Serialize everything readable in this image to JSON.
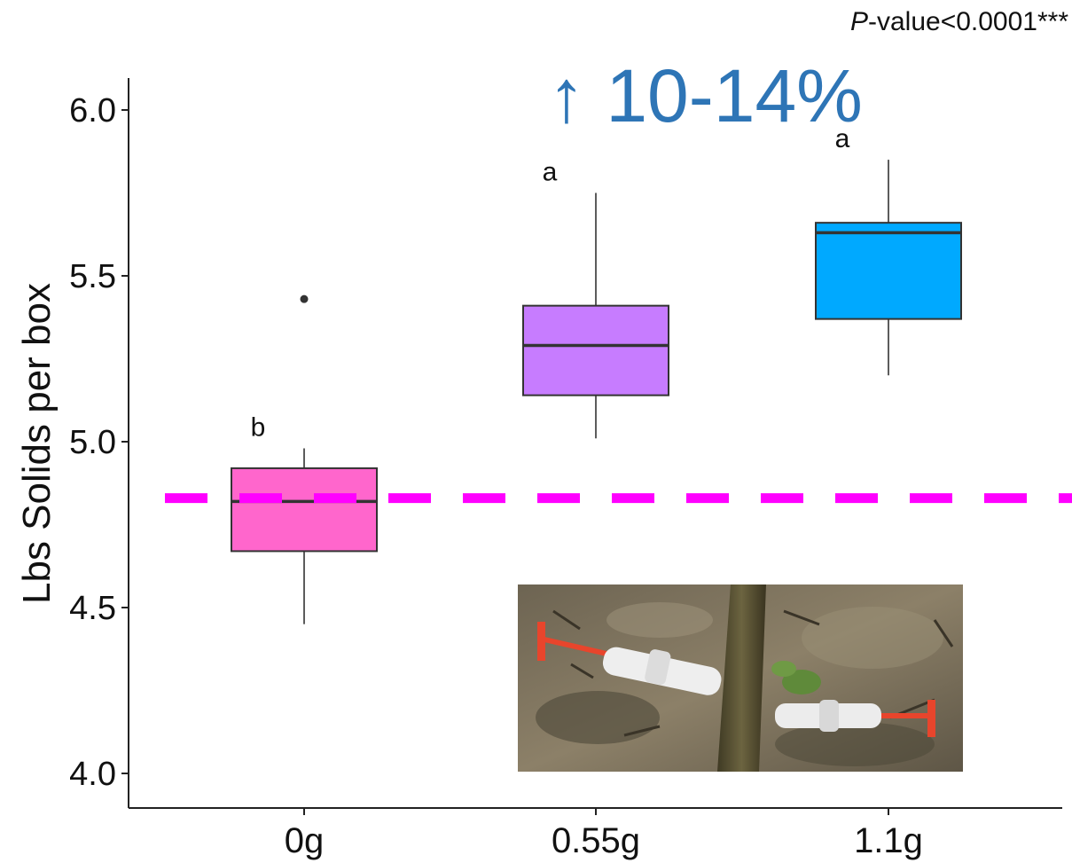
{
  "annotation": {
    "p_prefix": "P",
    "p_rest": "-value<0.0001***"
  },
  "headline": {
    "arrow": "↑",
    "text": "10-14%"
  },
  "chart_data": {
    "type": "box",
    "ylabel": "Lbs Solids per box",
    "xlabel": "",
    "ylim": [
      3.9,
      6.1
    ],
    "yticks": [
      4.0,
      4.5,
      5.0,
      5.5,
      6.0
    ],
    "categories": [
      "0g",
      "0.55g",
      "1.1g"
    ],
    "boxes": [
      {
        "category": "0g",
        "min": 4.45,
        "q1": 4.67,
        "median": 4.82,
        "q3": 4.92,
        "max": 4.98,
        "outliers": [
          5.43
        ],
        "letter": "b",
        "color": "#ff66cc"
      },
      {
        "category": "0.55g",
        "min": 5.01,
        "q1": 5.14,
        "median": 5.29,
        "q3": 5.41,
        "max": 5.75,
        "outliers": [],
        "letter": "a",
        "color": "#c77cff"
      },
      {
        "category": "1.1g",
        "min": 5.2,
        "q1": 5.37,
        "median": 5.63,
        "q3": 5.66,
        "max": 5.85,
        "outliers": [],
        "letter": "a",
        "color": "#00a9ff"
      }
    ],
    "reference_line": {
      "y": 4.83,
      "color": "#ff00ff",
      "style": "dashed"
    },
    "grid": false
  }
}
